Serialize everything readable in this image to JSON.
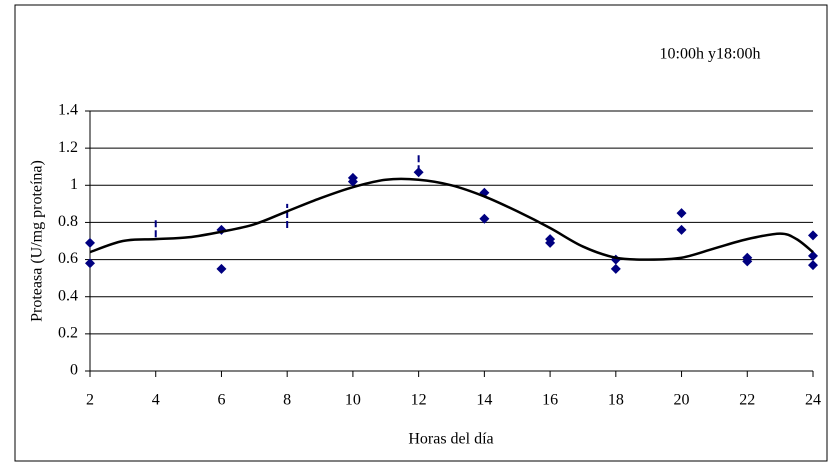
{
  "chart_data": {
    "type": "scatter",
    "annotation": "10:00h y18:00h",
    "xlabel": "Horas del día",
    "ylabel": "Proteasa (U/mg proteína)",
    "xlim": [
      2,
      24
    ],
    "xticks": [
      2,
      4,
      6,
      8,
      10,
      12,
      14,
      16,
      18,
      20,
      22,
      24
    ],
    "ylim": [
      0,
      1.4
    ],
    "yticks": [
      0,
      0.2,
      0.4,
      0.6,
      0.8,
      1,
      1.2,
      1.4
    ],
    "grid": true,
    "series": [
      {
        "type": "scatter",
        "color": "#000080",
        "x": [
          2,
          2,
          6,
          6,
          10,
          10,
          12,
          14,
          14,
          16,
          16,
          18,
          18,
          20,
          20,
          22,
          22,
          24,
          24,
          24
        ],
        "values": [
          0.69,
          0.58,
          0.76,
          0.55,
          1.04,
          1.02,
          1.07,
          0.96,
          0.82,
          0.71,
          0.69,
          0.6,
          0.55,
          0.85,
          0.76,
          0.61,
          0.59,
          0.73,
          0.62,
          0.57
        ]
      },
      {
        "type": "errorbar",
        "color": "#000080",
        "x": [
          4,
          8,
          12
        ],
        "values": [
          0.77,
          0.835,
          1.12
        ],
        "errors": [
          0.05,
          0.065,
          0.05
        ]
      },
      {
        "type": "line",
        "color": "#000000",
        "x": [
          2,
          3,
          4,
          5,
          6,
          7,
          8,
          9,
          10,
          11,
          12,
          13,
          14,
          15,
          16,
          17,
          18,
          19,
          20,
          21,
          22,
          23,
          23.5,
          24
        ],
        "values": [
          0.64,
          0.7,
          0.71,
          0.72,
          0.75,
          0.79,
          0.86,
          0.93,
          0.99,
          1.03,
          1.03,
          1,
          0.94,
          0.86,
          0.77,
          0.67,
          0.61,
          0.6,
          0.61,
          0.66,
          0.71,
          0.74,
          0.71,
          0.64
        ]
      }
    ]
  }
}
